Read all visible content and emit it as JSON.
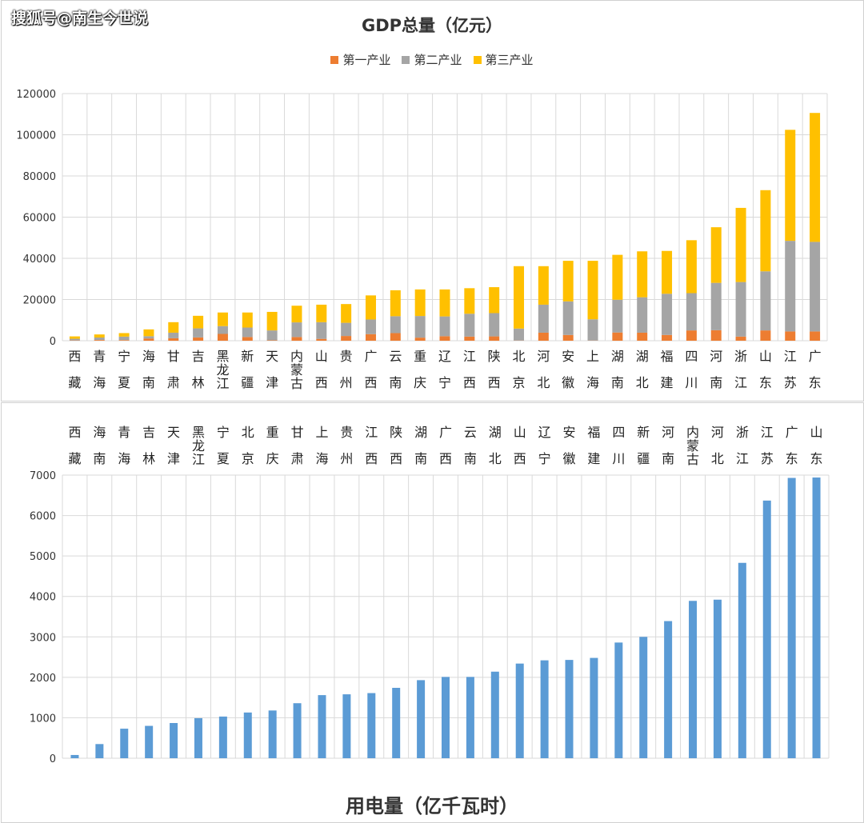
{
  "watermark": "搜狐号@南生今世说",
  "colors": {
    "primary": "#ED7D31",
    "secondary": "#A5A5A5",
    "tertiary": "#FFC000",
    "power": "#5B9BD5",
    "grid": "#D9D9D9"
  },
  "chart_data": [
    {
      "type": "bar",
      "stacked": true,
      "title": "GDP总量（亿元）",
      "legend_position": "top",
      "grid": true,
      "ylim": [
        0,
        120000
      ],
      "yticks": [
        0,
        20000,
        40000,
        60000,
        80000,
        100000,
        120000
      ],
      "categories": [
        "西藏",
        "青海",
        "宁夏",
        "海南",
        "甘肃",
        "吉林",
        "黑龙江",
        "新疆",
        "天津",
        "内蒙古",
        "山西",
        "贵州",
        "广西",
        "云南",
        "重庆",
        "辽宁",
        "江西",
        "陕西",
        "北京",
        "河北",
        "安徽",
        "上海",
        "湖南",
        "湖北",
        "福建",
        "四川",
        "河南",
        "浙江",
        "山东",
        "江苏",
        "广东"
      ],
      "series": [
        {
          "name": "第一产业",
          "values": [
            150,
            350,
            300,
            1100,
            1200,
            1600,
            3300,
            1800,
            200,
            1800,
            900,
            2300,
            3200,
            3700,
            1500,
            2200,
            2000,
            2100,
            100,
            3900,
            2800,
            100,
            4000,
            3900,
            2800,
            5000,
            5100,
            2000,
            5000,
            4500,
            4500
          ]
        },
        {
          "name": "第二产业",
          "values": [
            800,
            1200,
            1700,
            1100,
            2700,
            4400,
            3800,
            4600,
            4800,
            7100,
            8100,
            6400,
            7100,
            8200,
            10500,
            9600,
            11100,
            11300,
            5800,
            13600,
            16300,
            10300,
            15900,
            17200,
            20000,
            18100,
            23000,
            26500,
            28700,
            44000,
            43500
          ]
        },
        {
          "name": "第三产业",
          "values": [
            1150,
            1500,
            1700,
            3300,
            5100,
            6100,
            6600,
            7300,
            9000,
            8100,
            8500,
            9100,
            11700,
            12600,
            12900,
            13100,
            12400,
            12600,
            30300,
            18700,
            19700,
            28400,
            21800,
            22300,
            20800,
            25700,
            27000,
            36000,
            39400,
            53900,
            62600
          ]
        }
      ]
    },
    {
      "type": "bar",
      "title": "用电量（亿千瓦时）",
      "grid": true,
      "ylim": [
        0,
        7000
      ],
      "yticks": [
        0,
        1000,
        2000,
        3000,
        4000,
        5000,
        6000,
        7000
      ],
      "categories": [
        "西藏",
        "海南",
        "青海",
        "吉林",
        "天津",
        "黑龙江",
        "宁夏",
        "北京",
        "重庆",
        "甘肃",
        "上海",
        "贵州",
        "江西",
        "陕西",
        "湖南",
        "广西",
        "云南",
        "湖北",
        "山西",
        "辽宁",
        "安徽",
        "福建",
        "四川",
        "新疆",
        "河南",
        "内蒙古",
        "河北",
        "浙江",
        "江苏",
        "广东",
        "山东"
      ],
      "series": [
        {
          "name": "",
          "values": [
            80,
            350,
            730,
            800,
            870,
            990,
            1030,
            1130,
            1180,
            1360,
            1560,
            1580,
            1610,
            1740,
            1930,
            2010,
            2010,
            2140,
            2340,
            2420,
            2430,
            2480,
            2860,
            3000,
            3390,
            3890,
            3920,
            4830,
            6370,
            6930,
            6940
          ]
        }
      ]
    }
  ]
}
